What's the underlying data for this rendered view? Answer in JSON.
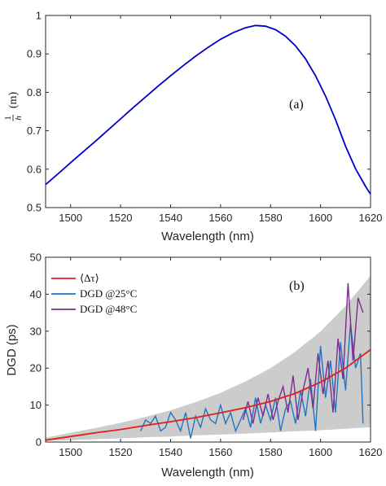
{
  "chart_data": [
    {
      "panel": "a",
      "type": "line",
      "annotation": "(a)",
      "xlabel": "Wavelength (nm)",
      "ylabel": "1/h (m)",
      "ylabel_num": "1",
      "ylabel_den": "h",
      "ylabel_unit": "(m)",
      "xlim": [
        1490,
        1620
      ],
      "ylim": [
        0.5,
        1.0
      ],
      "xticks": [
        "1500",
        "1520",
        "1540",
        "1560",
        "1580",
        "1600",
        "1620"
      ],
      "yticks": [
        "0.5",
        "0.6",
        "0.7",
        "0.8",
        "0.9",
        "1"
      ],
      "grid": false,
      "colors": {
        "line": "#0000cc"
      },
      "series": [
        {
          "x": [
            1490,
            1495,
            1500,
            1505,
            1510,
            1515,
            1520,
            1525,
            1530,
            1535,
            1540,
            1545,
            1550,
            1555,
            1560,
            1565,
            1570,
            1574,
            1578,
            1582,
            1586,
            1590,
            1594,
            1598,
            1602,
            1606,
            1610,
            1614,
            1618,
            1620
          ],
          "y": [
            0.56,
            0.588,
            0.617,
            0.645,
            0.673,
            0.702,
            0.731,
            0.76,
            0.788,
            0.816,
            0.843,
            0.869,
            0.894,
            0.917,
            0.938,
            0.955,
            0.968,
            0.974,
            0.972,
            0.963,
            0.946,
            0.921,
            0.887,
            0.843,
            0.79,
            0.729,
            0.66,
            0.601,
            0.555,
            0.535
          ]
        }
      ]
    },
    {
      "panel": "b",
      "type": "line",
      "annotation": "(b)",
      "xlabel": "Wavelength (nm)",
      "ylabel": "DGD (ps)",
      "xlim": [
        1490,
        1620
      ],
      "ylim": [
        0,
        50
      ],
      "xticks": [
        "1500",
        "1520",
        "1540",
        "1560",
        "1580",
        "1600",
        "1620"
      ],
      "yticks": [
        "0",
        "10",
        "20",
        "30",
        "40",
        "50"
      ],
      "grid": false,
      "legend_position": "top-left",
      "colors": {
        "band": "#cccccc",
        "mean": "#e0201c",
        "dgd25": "#1f77c4",
        "dgd48": "#7b2d8e"
      },
      "band": {
        "x": [
          1490,
          1500,
          1510,
          1520,
          1530,
          1540,
          1550,
          1560,
          1570,
          1580,
          1590,
          1600,
          1610,
          1620
        ],
        "lower": [
          0.3,
          0.5,
          0.8,
          1.0,
          1.3,
          1.5,
          1.8,
          2.0,
          2.3,
          2.6,
          2.9,
          3.2,
          3.6,
          4.0
        ],
        "upper": [
          1.2,
          2.5,
          3.8,
          5.2,
          6.8,
          8.6,
          10.8,
          13.3,
          16.4,
          20.0,
          24.5,
          29.9,
          36.8,
          45.0
        ]
      },
      "series": [
        {
          "name": "⟨Δτ⟩",
          "x": [
            1490,
            1500,
            1510,
            1520,
            1530,
            1540,
            1550,
            1560,
            1570,
            1580,
            1590,
            1600,
            1610,
            1620
          ],
          "y": [
            0.5,
            1.5,
            2.5,
            3.4,
            4.5,
            5.5,
            6.6,
            7.9,
            9.3,
            11.0,
            13.2,
            16.2,
            20.0,
            25.0
          ]
        },
        {
          "name": "DGD @25°C",
          "x": [
            1528,
            1530,
            1532,
            1534,
            1536,
            1538,
            1540,
            1542,
            1544,
            1546,
            1548,
            1550,
            1552,
            1554,
            1556,
            1558,
            1560,
            1562,
            1564,
            1566,
            1568,
            1570,
            1572,
            1574,
            1576,
            1578,
            1580,
            1582,
            1584,
            1586,
            1588,
            1590,
            1592,
            1594,
            1596,
            1598,
            1600,
            1602,
            1604,
            1606,
            1608,
            1610,
            1612,
            1614,
            1616,
            1617
          ],
          "y": [
            3,
            6,
            5,
            7,
            3,
            4,
            8,
            6,
            3,
            8,
            1,
            7,
            4,
            9,
            6,
            5,
            10,
            5,
            8,
            3,
            6,
            9,
            4,
            12,
            5,
            10,
            6,
            12,
            3,
            9,
            11,
            5,
            14,
            7,
            17,
            3,
            26,
            12,
            22,
            8,
            27,
            14,
            32,
            20,
            24,
            5
          ]
        },
        {
          "name": "DGD @48°C",
          "x": [
            1569,
            1571,
            1573,
            1575,
            1577,
            1579,
            1581,
            1583,
            1585,
            1587,
            1589,
            1591,
            1593,
            1595,
            1597,
            1599,
            1601,
            1603,
            1605,
            1607,
            1609,
            1611,
            1613,
            1615,
            1617
          ],
          "y": [
            6,
            11,
            5,
            12,
            7,
            13,
            6,
            11,
            15,
            8,
            18,
            6,
            14,
            20,
            9,
            24,
            13,
            22,
            8,
            28,
            17,
            43,
            22,
            39,
            35
          ]
        }
      ]
    }
  ]
}
